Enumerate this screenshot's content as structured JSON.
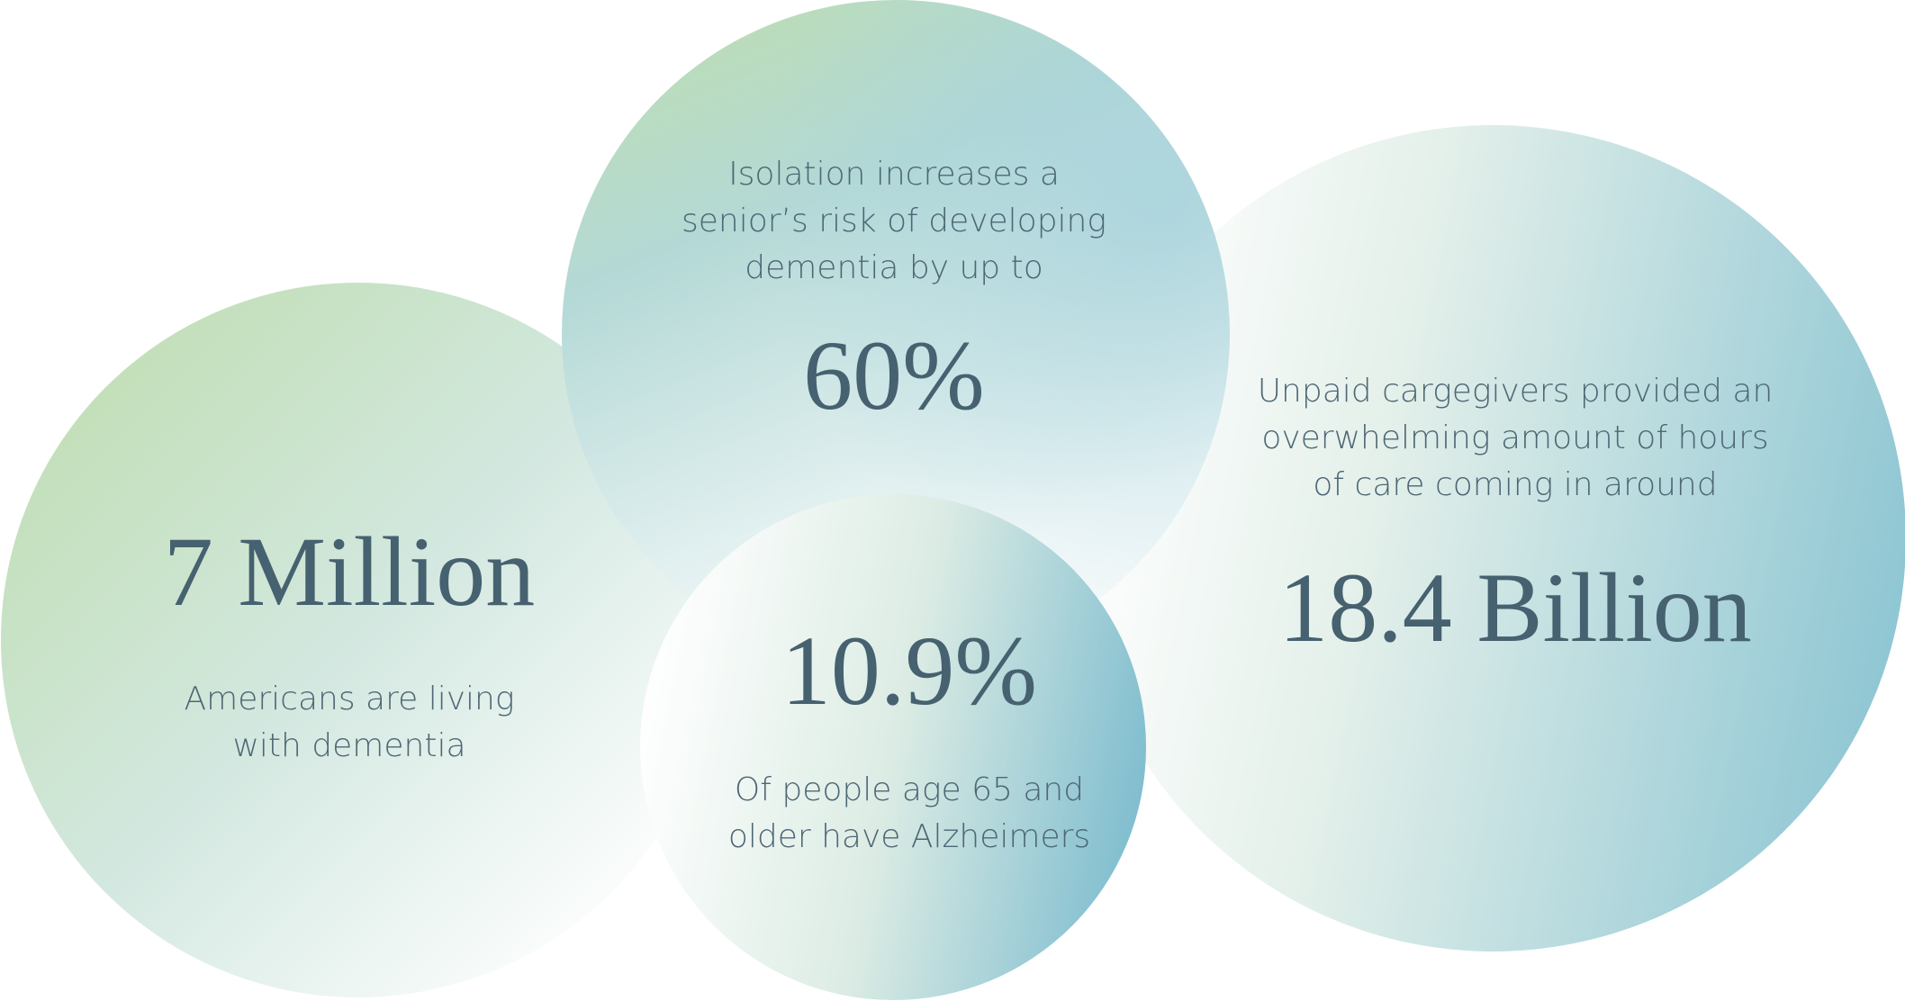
{
  "stats": [
    {
      "value": "7 Million",
      "text": [
        "Americans are living",
        "with dementia"
      ]
    },
    {
      "value": "60%",
      "text": [
        "Isolation increases a",
        "senior’s risk of developing",
        "dementia by up to"
      ]
    },
    {
      "value": "18.4 Billion",
      "text": [
        "Unpaid cargegivers provided an",
        "overwhelming amount of hours",
        "of care coming in around"
      ]
    },
    {
      "value": "10.9%",
      "text": [
        "Of people age 65 and",
        "older have Alzheimers"
      ]
    }
  ]
}
